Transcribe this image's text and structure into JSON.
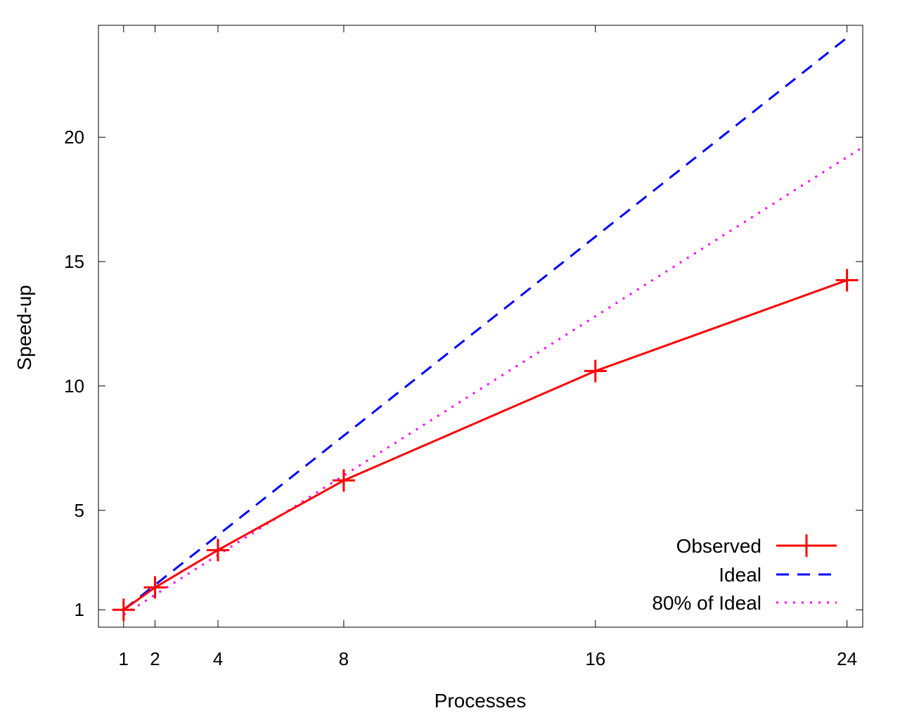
{
  "chart_data": {
    "type": "line",
    "title": "",
    "xlabel": "Processes",
    "ylabel": "Speed-up",
    "xlim": [
      0.2,
      24.5
    ],
    "ylim": [
      0.3,
      24.5
    ],
    "xticks": [
      1,
      2,
      4,
      8,
      16,
      24
    ],
    "yticks": [
      1,
      5,
      10,
      15,
      20
    ],
    "grid": false,
    "legend_position": "bottom-right",
    "series": [
      {
        "name": "Observed",
        "style": "solid",
        "marker": "plus",
        "color": "#ff0000",
        "x": [
          1,
          2,
          4,
          8,
          16,
          24
        ],
        "y": [
          1.0,
          1.9,
          3.4,
          6.2,
          10.6,
          14.25
        ]
      },
      {
        "name": "Ideal",
        "style": "dashed",
        "marker": "none",
        "color": "#0000ff",
        "x": [
          1,
          24
        ],
        "y": [
          1,
          24
        ]
      },
      {
        "name": "80% of Ideal",
        "style": "dotted",
        "marker": "none",
        "color": "#ff00ff",
        "x": [
          1,
          24.5
        ],
        "y": [
          0.8,
          19.6
        ]
      }
    ]
  }
}
